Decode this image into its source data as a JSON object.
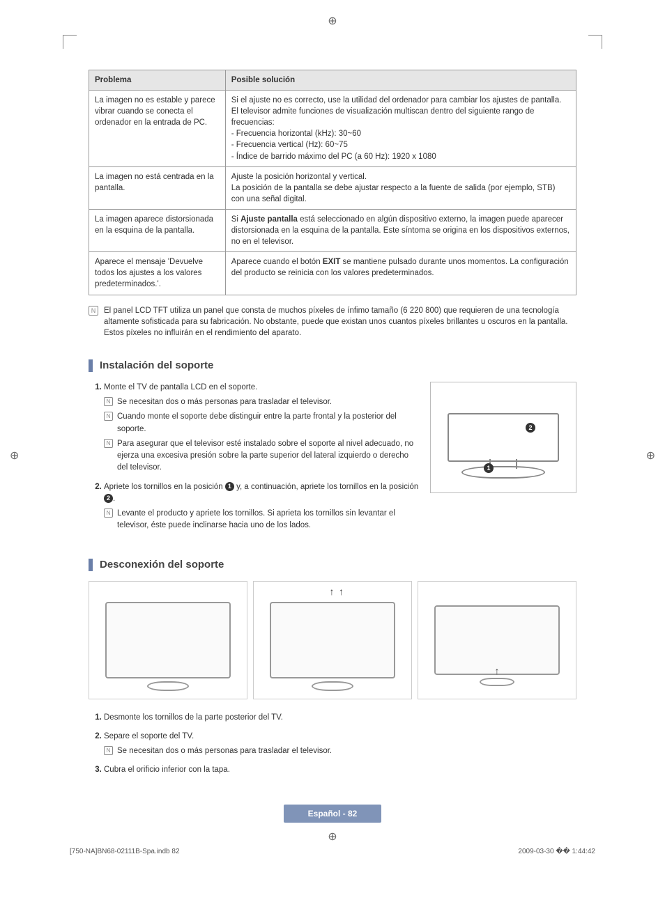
{
  "page": {
    "headers": {
      "problem": "Problema",
      "solution": "Posible solución"
    },
    "rows": [
      {
        "problem": "La imagen no es estable y parece vibrar cuando se conecta el ordenador en la entrada de PC.",
        "solution": [
          "Si el ajuste no es correcto, use la utilidad del ordenador para cambiar los ajustes de pantalla.",
          "El televisor admite funciones de visualización multiscan dentro del siguiente rango de frecuencias:",
          "- Frecuencia horizontal (kHz): 30~60",
          "- Frecuencia vertical (Hz): 60~75",
          "- Índice de barrido máximo del PC (a 60 Hz): 1920 x 1080"
        ]
      },
      {
        "problem": "La imagen no está centrada en la pantalla.",
        "solution": [
          "Ajuste la posición horizontal y vertical.",
          "La posición de la pantalla se debe ajustar respecto a la fuente de salida (por ejemplo, STB) con una señal digital."
        ]
      },
      {
        "problem": "La imagen aparece distorsionada en la esquina de la pantalla.",
        "solution_html": "Si <b>Ajuste pantalla</b> está seleccionado en algún dispositivo externo, la imagen puede aparecer distorsionada en la esquina de la pantalla. Este síntoma se origina en los dispositivos externos, no en el televisor."
      },
      {
        "problem": "Aparece el mensaje 'Devuelve todos los ajustes a los valores predeterminados.'.",
        "solution_html": "Aparece cuando el botón <b>EXIT</b> se mantiene pulsado durante unos momentos. La configuración del producto se reinicia con los valores predeterminados."
      }
    ],
    "lcd_note": "El panel LCD TFT utiliza un panel que consta de muchos píxeles de ínfimo tamaño (6 220 800) que requieren de una tecnología altamente sofisticada para su fabricación. No obstante, puede que existan unos cuantos píxeles brillantes u oscuros en la pantalla. Estos píxeles no influirán en el rendimiento del aparato.",
    "install": {
      "title": "Instalación del soporte",
      "step1": "Monte el TV de pantalla LCD en el soporte.",
      "step1_notes": [
        "Se necesitan dos o más personas para trasladar el televisor.",
        "Cuando monte el soporte debe distinguir entre la parte frontal y la posterior del soporte.",
        "Para asegurar que el televisor esté instalado sobre el soporte al nivel adecuado, no ejerza una excesiva presión sobre la parte superior del lateral izquierdo o derecho del televisor."
      ],
      "step2_pre": "Apriete los tornillos en la posición ",
      "step2_mid": " y, a continuación, apriete los tornillos en la posición ",
      "step2_post": ".",
      "step2_note": "Levante el producto y apriete los tornillos. Si aprieta los tornillos sin levantar el televisor, éste puede inclinarse hacia uno de los lados."
    },
    "disconnect": {
      "title": "Desconexión del soporte",
      "step1": "Desmonte los tornillos de la parte posterior del TV.",
      "step2": "Separe el soporte del TV.",
      "step2_note": "Se necesitan dos o más personas para trasladar el televisor.",
      "step3": "Cubra el orificio inferior con la tapa."
    },
    "footer": {
      "lang_page": "Español - 82",
      "file": "[750-NA]BN68-02111B-Spa.indb   82",
      "datetime": "2009-03-30   �� 1:44:42"
    }
  }
}
